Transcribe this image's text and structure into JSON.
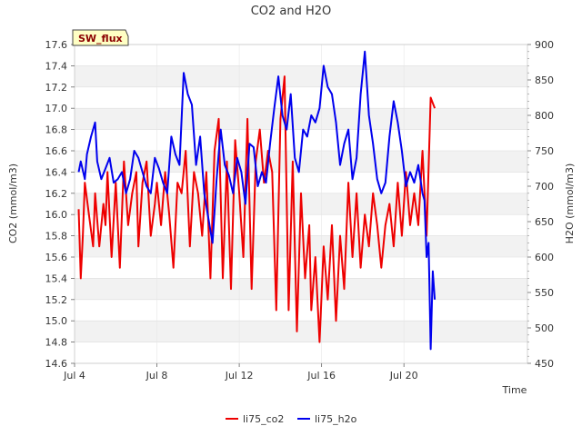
{
  "chart_data": {
    "type": "line",
    "title": "CO2 and H2O",
    "badge": "SW_flux",
    "xlabel": "Time",
    "ylabel_left": "CO2 (mmol/m3)",
    "ylabel_right": "H2O (mmol/m3)",
    "x_unit": "days since Jul 4",
    "xlim": [
      0,
      22
    ],
    "x_ticks": [
      {
        "value": 0,
        "label": "Jul 4"
      },
      {
        "value": 4,
        "label": "Jul 8"
      },
      {
        "value": 8,
        "label": "Jul 12"
      },
      {
        "value": 12,
        "label": "Jul 16"
      },
      {
        "value": 16,
        "label": "Jul 20"
      }
    ],
    "ylim_left": [
      14.6,
      17.6
    ],
    "y_ticks_left": [
      "14.6",
      "14.8",
      "15.0",
      "15.2",
      "15.4",
      "15.6",
      "15.8",
      "16.0",
      "16.2",
      "16.4",
      "16.6",
      "16.8",
      "17.0",
      "17.2",
      "17.4",
      "17.6"
    ],
    "ylim_right": [
      450,
      900
    ],
    "y_ticks_right": [
      "450",
      "500",
      "550",
      "600",
      "650",
      "700",
      "750",
      "800",
      "850",
      "900"
    ],
    "series": [
      {
        "name": "li75_co2",
        "axis": "left",
        "color": "#ee0000",
        "x": [
          0.2,
          0.3,
          0.4,
          0.5,
          0.7,
          0.9,
          1.0,
          1.2,
          1.4,
          1.5,
          1.6,
          1.8,
          2.0,
          2.2,
          2.4,
          2.6,
          2.8,
          3.0,
          3.1,
          3.3,
          3.5,
          3.7,
          3.9,
          4.0,
          4.2,
          4.4,
          4.6,
          4.8,
          5.0,
          5.2,
          5.4,
          5.6,
          5.8,
          6.0,
          6.2,
          6.4,
          6.6,
          6.8,
          7.0,
          7.2,
          7.4,
          7.6,
          7.8,
          8.0,
          8.2,
          8.4,
          8.6,
          8.8,
          9.0,
          9.2,
          9.4,
          9.6,
          9.8,
          10.0,
          10.2,
          10.4,
          10.6,
          10.8,
          11.0,
          11.2,
          11.4,
          11.5,
          11.7,
          11.9,
          12.1,
          12.3,
          12.5,
          12.7,
          12.9,
          13.1,
          13.3,
          13.5,
          13.7,
          13.9,
          14.1,
          14.3,
          14.5,
          14.7,
          14.9,
          15.1,
          15.3,
          15.5,
          15.7,
          15.9,
          16.1,
          16.3,
          16.5,
          16.7,
          16.9,
          17.1,
          17.3,
          17.5
        ],
        "values": [
          16.05,
          15.4,
          15.8,
          16.3,
          16.0,
          15.7,
          16.2,
          15.7,
          16.1,
          15.9,
          16.4,
          15.6,
          16.3,
          15.5,
          16.5,
          15.9,
          16.2,
          16.4,
          15.7,
          16.3,
          16.5,
          15.8,
          16.1,
          16.3,
          15.9,
          16.4,
          16.0,
          15.5,
          16.3,
          16.2,
          16.6,
          15.7,
          16.4,
          16.2,
          15.8,
          16.4,
          15.4,
          16.6,
          16.9,
          15.4,
          16.5,
          15.3,
          16.7,
          16.2,
          15.6,
          16.9,
          15.3,
          16.5,
          16.8,
          16.3,
          16.6,
          16.4,
          15.1,
          16.9,
          17.3,
          15.1,
          16.5,
          14.9,
          16.2,
          15.4,
          15.9,
          15.1,
          15.6,
          14.8,
          15.7,
          15.2,
          15.9,
          15.0,
          15.8,
          15.3,
          16.3,
          15.6,
          16.2,
          15.5,
          16.0,
          15.7,
          16.2,
          15.9,
          15.5,
          15.9,
          16.1,
          15.7,
          16.3,
          15.8,
          16.4,
          15.9,
          16.2,
          15.9,
          16.6,
          15.8,
          17.1,
          17.0
        ],
        "line_width": 2
      },
      {
        "name": "li75_h2o",
        "axis": "right",
        "color": "#0000ee",
        "x": [
          0.2,
          0.3,
          0.5,
          0.6,
          0.8,
          1.0,
          1.1,
          1.3,
          1.5,
          1.7,
          1.9,
          2.1,
          2.3,
          2.5,
          2.7,
          2.9,
          3.1,
          3.3,
          3.5,
          3.7,
          3.9,
          4.1,
          4.3,
          4.5,
          4.7,
          4.9,
          5.1,
          5.3,
          5.5,
          5.7,
          5.9,
          6.1,
          6.3,
          6.5,
          6.7,
          6.9,
          7.1,
          7.3,
          7.5,
          7.7,
          7.9,
          8.1,
          8.3,
          8.5,
          8.7,
          8.9,
          9.1,
          9.3,
          9.5,
          9.7,
          9.9,
          10.1,
          10.3,
          10.5,
          10.7,
          10.9,
          11.1,
          11.3,
          11.5,
          11.7,
          11.9,
          12.1,
          12.3,
          12.5,
          12.7,
          12.9,
          13.1,
          13.3,
          13.5,
          13.7,
          13.9,
          14.1,
          14.3,
          14.5,
          14.7,
          14.9,
          15.1,
          15.3,
          15.5,
          15.7,
          15.9,
          16.1,
          16.3,
          16.5,
          16.7,
          16.9,
          17.0,
          17.1,
          17.2,
          17.3,
          17.4,
          17.5
        ],
        "values": [
          720,
          735,
          710,
          745,
          770,
          790,
          735,
          710,
          725,
          740,
          705,
          710,
          720,
          690,
          710,
          750,
          740,
          720,
          700,
          690,
          740,
          725,
          705,
          690,
          770,
          745,
          730,
          860,
          830,
          815,
          730,
          770,
          690,
          655,
          620,
          710,
          780,
          730,
          715,
          690,
          740,
          720,
          675,
          760,
          755,
          700,
          720,
          705,
          760,
          810,
          855,
          800,
          780,
          830,
          740,
          720,
          780,
          770,
          800,
          790,
          810,
          870,
          840,
          830,
          790,
          730,
          760,
          780,
          710,
          740,
          830,
          890,
          800,
          760,
          710,
          690,
          705,
          770,
          820,
          790,
          750,
          700,
          720,
          705,
          730,
          690,
          680,
          600,
          620,
          470,
          580,
          540
        ],
        "line_width": 2
      }
    ],
    "legend": {
      "position": "bottom-center",
      "entries": [
        "li75_co2",
        "li75_h2o"
      ]
    },
    "grid": "horizontal bands"
  }
}
